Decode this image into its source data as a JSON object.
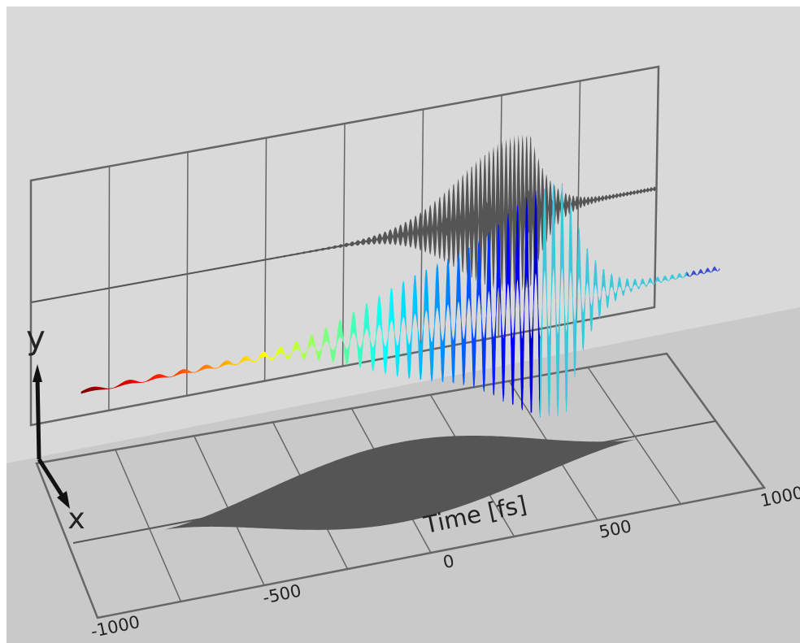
{
  "chart_data": {
    "type": "pulse3d",
    "x_label": "Time [fs]",
    "xlim": [
      -1000,
      1000
    ],
    "xticks": [
      -1000,
      {
        "value": -750,
        "label": null
      },
      -500,
      {
        "value": -250,
        "label": null
      },
      0,
      {
        "value": 250,
        "label": null
      },
      500,
      {
        "value": 750,
        "label": null
      },
      1000
    ],
    "axis_labels": [
      "x",
      "y"
    ]
  }
}
